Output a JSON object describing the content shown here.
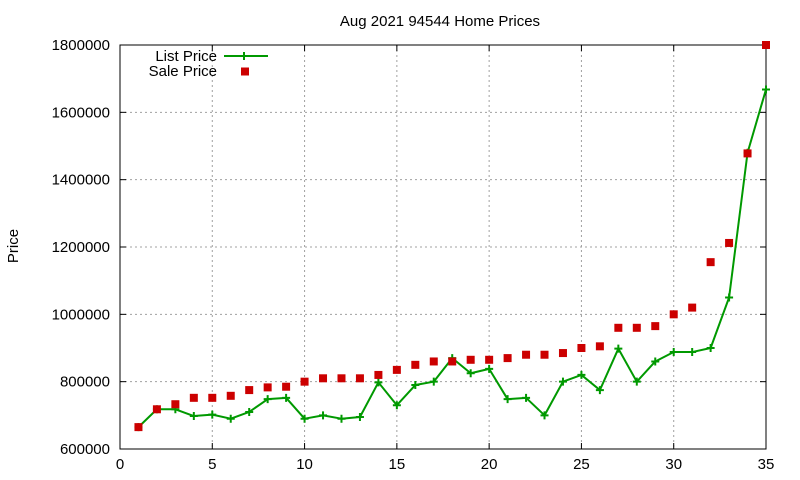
{
  "chart_data": {
    "type": "line",
    "title": "Aug 2021 94544 Home Prices",
    "xlabel": "",
    "ylabel": "Price",
    "xlim": [
      0,
      35
    ],
    "ylim": [
      600000,
      1800000
    ],
    "xticks": [
      0,
      5,
      10,
      15,
      20,
      25,
      30,
      35
    ],
    "yticks": [
      600000,
      800000,
      1000000,
      1200000,
      1400000,
      1600000,
      1800000
    ],
    "grid": true,
    "legend_position": "top-left",
    "x": [
      1,
      2,
      3,
      4,
      5,
      6,
      7,
      8,
      9,
      10,
      11,
      12,
      13,
      14,
      15,
      16,
      17,
      18,
      19,
      20,
      21,
      22,
      23,
      24,
      25,
      26,
      27,
      28,
      29,
      30,
      31,
      32,
      33,
      34,
      35
    ],
    "series": [
      {
        "name": "List Price",
        "style": "linespoints",
        "color": "#009900",
        "values": [
          665000,
          718000,
          718000,
          698000,
          702000,
          690000,
          710000,
          748000,
          752000,
          690000,
          700000,
          690000,
          695000,
          798000,
          730000,
          790000,
          800000,
          870000,
          825000,
          838000,
          748000,
          752000,
          700000,
          800000,
          820000,
          775000,
          898000,
          800000,
          860000,
          888000,
          888000,
          900000,
          1050000,
          1480000,
          1668000
        ]
      },
      {
        "name": "Sale Price",
        "style": "points",
        "color": "#cc0000",
        "values": [
          665000,
          718000,
          733000,
          752000,
          752000,
          758000,
          775000,
          783000,
          785000,
          800000,
          810000,
          810000,
          810000,
          820000,
          835000,
          850000,
          860000,
          860000,
          865000,
          865000,
          870000,
          880000,
          880000,
          885000,
          900000,
          905000,
          960000,
          960000,
          965000,
          1000000,
          1020000,
          1155000,
          1212000,
          1478000,
          1800000
        ]
      }
    ]
  }
}
